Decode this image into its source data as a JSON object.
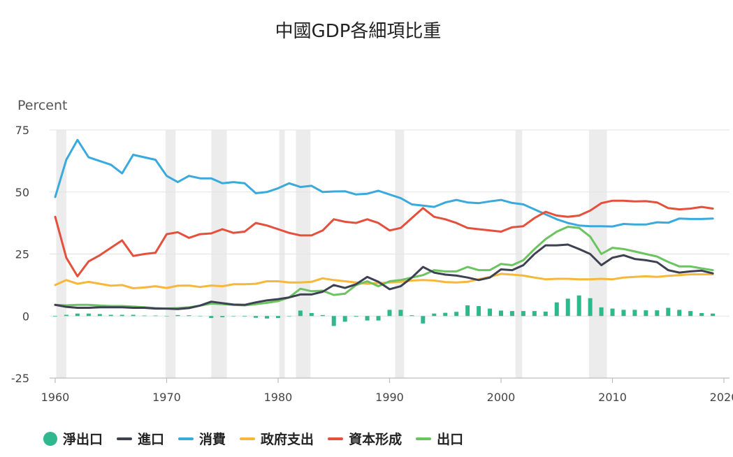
{
  "chart_data": {
    "type": "line",
    "title": "中國GDP各細項比重",
    "ylabel": "Percent",
    "xlabel": "",
    "ylim": [
      -25,
      75
    ],
    "xlim": [
      1959.5,
      2020.5
    ],
    "yticks": [
      75,
      50,
      25,
      0,
      -25
    ],
    "xticks": [
      1960,
      1970,
      1980,
      1990,
      2000,
      2010,
      2020
    ],
    "recession_bands": [
      [
        1960.1,
        1961.0
      ],
      [
        1969.9,
        1970.8
      ],
      [
        1974.0,
        1975.4
      ],
      [
        1980.1,
        1980.6
      ],
      [
        1981.6,
        1982.9
      ],
      [
        1990.5,
        1991.3
      ],
      [
        2001.3,
        2001.9
      ],
      [
        2007.9,
        2009.5
      ]
    ],
    "years": [
      1960,
      1961,
      1962,
      1963,
      1964,
      1965,
      1966,
      1967,
      1968,
      1969,
      1970,
      1971,
      1972,
      1973,
      1974,
      1975,
      1976,
      1977,
      1978,
      1979,
      1980,
      1981,
      1982,
      1983,
      1984,
      1985,
      1986,
      1987,
      1988,
      1989,
      1990,
      1991,
      1992,
      1993,
      1994,
      1995,
      1996,
      1997,
      1998,
      1999,
      2000,
      2001,
      2002,
      2003,
      2004,
      2005,
      2006,
      2007,
      2008,
      2009,
      2010,
      2011,
      2012,
      2013,
      2014,
      2015,
      2016,
      2017,
      2018,
      2019
    ],
    "series": [
      {
        "name": "消費",
        "color": "#3aa9dc",
        "values": [
          48,
          63,
          71,
          64,
          62.5,
          61,
          57.5,
          65,
          64,
          63,
          56.5,
          54,
          56.5,
          55.5,
          55.5,
          53.5,
          54,
          53.5,
          49.5,
          50,
          51.5,
          53.5,
          52,
          52.5,
          50,
          50.2,
          50.3,
          49,
          49.3,
          50.5,
          49,
          47.5,
          45,
          44.5,
          44,
          45.8,
          46.8,
          45.8,
          45.5,
          46.2,
          46.8,
          45.6,
          45,
          43,
          41,
          39,
          37.5,
          36.5,
          36.2,
          36.2,
          36.1,
          37.1,
          36.9,
          36.9,
          37.8,
          37.6,
          39.3,
          39.1,
          39.1,
          39.3
        ]
      },
      {
        "name": "資本形成",
        "color": "#e4503c",
        "values": [
          40,
          23.5,
          16,
          22,
          24.5,
          27.5,
          30.5,
          24.2,
          25,
          25.5,
          33,
          33.8,
          31.5,
          33,
          33.3,
          35,
          33.5,
          34,
          37.5,
          36.5,
          35,
          33.5,
          32.5,
          32.5,
          34.5,
          39,
          38,
          37.5,
          39,
          37.5,
          34.5,
          35.5,
          39.5,
          43.5,
          40,
          39,
          37.5,
          35.5,
          35,
          34.5,
          34,
          35.8,
          36.2,
          39.5,
          42,
          40.5,
          40,
          40.5,
          42.5,
          45.5,
          46.5,
          46.5,
          46.2,
          46.3,
          45.8,
          43.5,
          43,
          43.3,
          44,
          43.3
        ]
      },
      {
        "name": "政府支出",
        "color": "#f5b83d",
        "values": [
          12.5,
          14.5,
          13,
          13.8,
          13,
          12.2,
          12.5,
          11.2,
          11.5,
          12,
          11.3,
          12.2,
          12.3,
          11.7,
          12.3,
          12,
          12.8,
          12.8,
          13,
          14,
          14,
          13.5,
          13.5,
          13.8,
          15.2,
          14.5,
          14,
          13.5,
          13,
          13.3,
          13.5,
          13.8,
          14.3,
          14.5,
          14.3,
          13.7,
          13.5,
          13.8,
          14.8,
          15.8,
          17,
          16.7,
          16.3,
          15.5,
          14.8,
          15,
          15,
          14.8,
          14.8,
          15,
          14.8,
          15.5,
          15.8,
          16,
          15.8,
          16.2,
          16.5,
          16.8,
          16.8,
          16.8
        ]
      },
      {
        "name": "出口",
        "color": "#6cc461",
        "values": [
          4.5,
          4.3,
          4.5,
          4.5,
          4.2,
          4,
          4,
          3.8,
          3.5,
          3.2,
          3,
          3.2,
          3.5,
          4.2,
          5,
          4.8,
          4.5,
          4.3,
          4.8,
          5.3,
          6,
          7.5,
          11,
          10,
          10.2,
          8.5,
          9,
          12.5,
          14,
          12,
          14,
          14.5,
          15.5,
          16.5,
          18.5,
          18,
          18,
          19.8,
          18.5,
          18.5,
          21,
          20.5,
          22.5,
          27,
          31,
          34,
          36,
          35.5,
          32,
          25,
          27.5,
          27,
          26,
          25,
          24,
          21.8,
          20,
          20,
          19.2,
          18.5
        ]
      },
      {
        "name": "進口",
        "color": "#3d4152",
        "values": [
          4.5,
          3.7,
          3.3,
          3.3,
          3.5,
          3.5,
          3.5,
          3.3,
          3.3,
          3,
          3,
          2.8,
          3.2,
          4.2,
          5.8,
          5.2,
          4.6,
          4.5,
          5.5,
          6.3,
          6.8,
          7.5,
          8.7,
          8.7,
          9.8,
          12.5,
          11.3,
          12.8,
          15.8,
          13.8,
          10.8,
          12,
          15.5,
          19.8,
          17.5,
          16.7,
          16.3,
          15.5,
          14.5,
          15.5,
          18.8,
          18.5,
          20.5,
          25,
          28.5,
          28.5,
          28.8,
          27,
          25,
          20.5,
          23.5,
          24.5,
          23,
          22.5,
          21.7,
          18.5,
          17.5,
          18,
          18.3,
          17.2
        ]
      },
      {
        "name": "淨出口",
        "type": "bar",
        "color": "#2fb88c",
        "values": [
          -0.2,
          0.5,
          1,
          1,
          0.8,
          0.5,
          0.5,
          0.5,
          0.2,
          0.2,
          0,
          0.4,
          0.3,
          0,
          -0.8,
          -0.5,
          -0.1,
          -0.2,
          -0.7,
          -1,
          -0.8,
          0,
          2.2,
          1.2,
          0.4,
          -4,
          -2.3,
          -0.3,
          -1.8,
          -1.8,
          2.5,
          2.5,
          0.3,
          -3,
          1,
          1.3,
          1.7,
          4.3,
          4,
          3,
          2.2,
          2,
          2,
          2,
          1.8,
          5.5,
          7,
          8.3,
          7.2,
          3.5,
          3,
          2.5,
          2.5,
          2.3,
          2.3,
          3.3,
          2.5,
          2,
          1.2,
          1
        ]
      }
    ]
  },
  "legend": [
    {
      "label": "淨出口",
      "color": "#2fb88c",
      "shape": "dot"
    },
    {
      "label": "進口",
      "color": "#3d4152",
      "shape": "line"
    },
    {
      "label": "消費",
      "color": "#3aa9dc",
      "shape": "line"
    },
    {
      "label": "政府支出",
      "color": "#f5b83d",
      "shape": "line"
    },
    {
      "label": "資本形成",
      "color": "#e4503c",
      "shape": "line"
    },
    {
      "label": "出口",
      "color": "#6cc461",
      "shape": "line"
    }
  ]
}
